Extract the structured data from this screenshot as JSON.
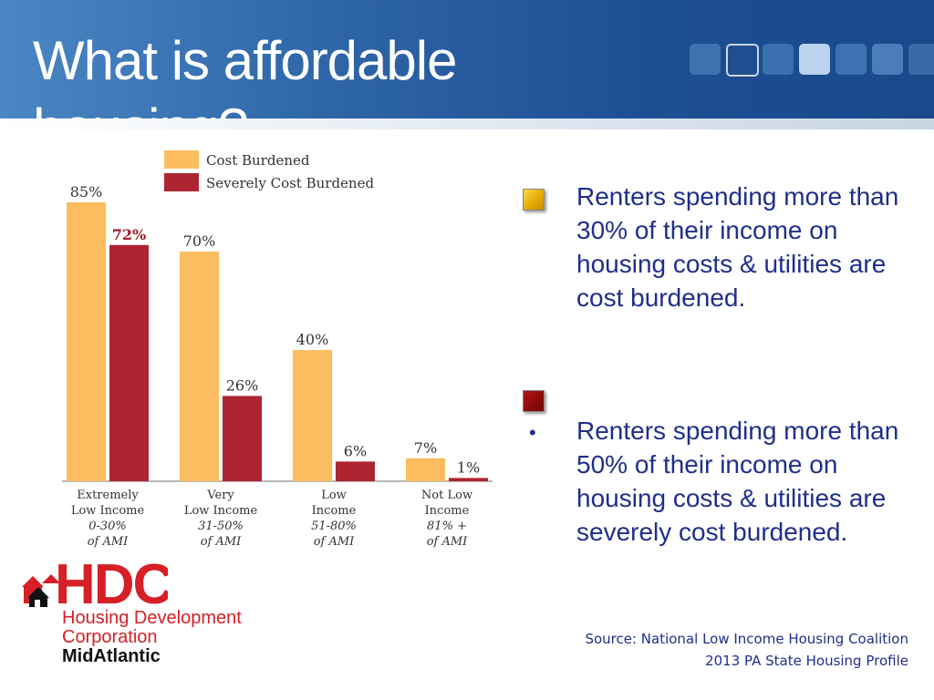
{
  "slide": {
    "title": "What is affordable housing?"
  },
  "chart_data": {
    "type": "bar",
    "legend_position": "top",
    "series": [
      {
        "name": "Cost Burdened",
        "values": [
          85,
          70,
          40,
          7
        ],
        "labels": [
          "85%",
          "70%",
          "40%",
          "7%"
        ],
        "color": "#fbbd5f"
      },
      {
        "name": "Severely Cost Burdened",
        "values": [
          72,
          26,
          6,
          1
        ],
        "labels": [
          "72%",
          "26%",
          "6%",
          "1%"
        ],
        "color": "#ad2530"
      }
    ],
    "categories": [
      {
        "line1": "Extremely",
        "line2": "Low Income",
        "line3": "0-30%",
        "line4": "of AMI"
      },
      {
        "line1": "Very",
        "line2": "Low Income",
        "line3": "31-50%",
        "line4": "of AMI"
      },
      {
        "line1": "Low",
        "line2": "Income",
        "line3": "51-80%",
        "line4": "of AMI"
      },
      {
        "line1": "Not Low",
        "line2": "Income",
        "line3": "81% +",
        "line4": "of AMI"
      }
    ],
    "highlight_label_color": "#a01c24",
    "ylim": [
      0,
      100
    ],
    "grid": false
  },
  "bullets": [
    {
      "text": "Renters spending more than 30% of their income on housing costs & utilities are cost burdened."
    },
    {
      "marker": "•",
      "text": "Renters spending more than 50% of their income on housing costs & utilities are severely cost burdened."
    }
  ],
  "source": {
    "line1": "Source: National Low Income Housing Coalition",
    "line2": "2013 PA State Housing Profile"
  },
  "logo": {
    "mark": "HDC",
    "line1": "Housing Development",
    "line2": "Corporation",
    "line3": "MidAtlantic",
    "red": "#d61f26"
  }
}
